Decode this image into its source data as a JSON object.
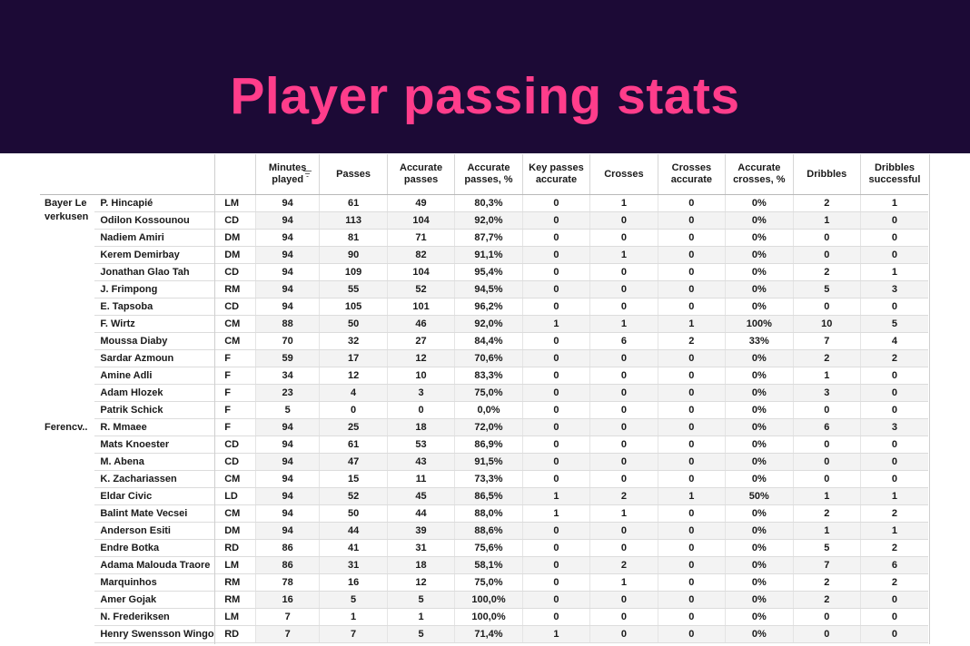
{
  "banner": {
    "title": "Player passing stats"
  },
  "colors": {
    "banner_bg": "#1c0a36",
    "title": "#ff3d8b"
  },
  "chart_data": {
    "type": "table",
    "title": "Player passing stats",
    "columns": [
      "Minutes played",
      "Passes",
      "Accurate passes",
      "Accurate passes, %",
      "Key passes accurate",
      "Crosses",
      "Crosses accurate",
      "Accurate crosses, %",
      "Dribbles",
      "Dribbles successful"
    ],
    "column_lines": [
      [
        "Minutes",
        "played"
      ],
      [
        "Passes"
      ],
      [
        "Accurate",
        "passes"
      ],
      [
        "Accurate",
        "passes, %"
      ],
      [
        "Key passes",
        "accurate"
      ],
      [
        "Crosses"
      ],
      [
        "Crosses",
        "accurate"
      ],
      [
        "Accurate",
        "crosses, %"
      ],
      [
        "Dribbles"
      ],
      [
        "Dribbles",
        "successful"
      ]
    ],
    "teams": [
      {
        "name_lines": [
          "Bayer Le",
          "verkusen"
        ],
        "players": [
          {
            "name": "P. Hincapié",
            "pos": "LM",
            "values": [
              "94",
              "61",
              "49",
              "80,3%",
              "0",
              "1",
              "0",
              "0%",
              "2",
              "1"
            ]
          },
          {
            "name": "Odilon Kossounou",
            "pos": "CD",
            "values": [
              "94",
              "113",
              "104",
              "92,0%",
              "0",
              "0",
              "0",
              "0%",
              "1",
              "0"
            ]
          },
          {
            "name": "Nadiem Amiri",
            "pos": "DM",
            "values": [
              "94",
              "81",
              "71",
              "87,7%",
              "0",
              "0",
              "0",
              "0%",
              "0",
              "0"
            ]
          },
          {
            "name": "Kerem Demirbay",
            "pos": "DM",
            "values": [
              "94",
              "90",
              "82",
              "91,1%",
              "0",
              "1",
              "0",
              "0%",
              "0",
              "0"
            ]
          },
          {
            "name": "Jonathan Glao Tah",
            "pos": "CD",
            "values": [
              "94",
              "109",
              "104",
              "95,4%",
              "0",
              "0",
              "0",
              "0%",
              "2",
              "1"
            ]
          },
          {
            "name": "J. Frimpong",
            "pos": "RM",
            "values": [
              "94",
              "55",
              "52",
              "94,5%",
              "0",
              "0",
              "0",
              "0%",
              "5",
              "3"
            ]
          },
          {
            "name": "E. Tapsoba",
            "pos": "CD",
            "values": [
              "94",
              "105",
              "101",
              "96,2%",
              "0",
              "0",
              "0",
              "0%",
              "0",
              "0"
            ]
          },
          {
            "name": "F. Wirtz",
            "pos": "CM",
            "values": [
              "88",
              "50",
              "46",
              "92,0%",
              "1",
              "1",
              "1",
              "100%",
              "10",
              "5"
            ]
          },
          {
            "name": "Moussa Diaby",
            "pos": "CM",
            "values": [
              "70",
              "32",
              "27",
              "84,4%",
              "0",
              "6",
              "2",
              "33%",
              "7",
              "4"
            ]
          },
          {
            "name": "Sardar Azmoun",
            "pos": "F",
            "values": [
              "59",
              "17",
              "12",
              "70,6%",
              "0",
              "0",
              "0",
              "0%",
              "2",
              "2"
            ]
          },
          {
            "name": "Amine Adli",
            "pos": "F",
            "values": [
              "34",
              "12",
              "10",
              "83,3%",
              "0",
              "0",
              "0",
              "0%",
              "1",
              "0"
            ]
          },
          {
            "name": "Adam Hlozek",
            "pos": "F",
            "values": [
              "23",
              "4",
              "3",
              "75,0%",
              "0",
              "0",
              "0",
              "0%",
              "3",
              "0"
            ]
          },
          {
            "name": "Patrik Schick",
            "pos": "F",
            "values": [
              "5",
              "0",
              "0",
              "0,0%",
              "0",
              "0",
              "0",
              "0%",
              "0",
              "0"
            ]
          }
        ]
      },
      {
        "name_lines": [
          "Ferencv.."
        ],
        "players": [
          {
            "name": "R. Mmaee",
            "pos": "F",
            "values": [
              "94",
              "25",
              "18",
              "72,0%",
              "0",
              "0",
              "0",
              "0%",
              "6",
              "3"
            ]
          },
          {
            "name": "Mats Knoester",
            "pos": "CD",
            "values": [
              "94",
              "61",
              "53",
              "86,9%",
              "0",
              "0",
              "0",
              "0%",
              "0",
              "0"
            ]
          },
          {
            "name": "M. Abena",
            "pos": "CD",
            "values": [
              "94",
              "47",
              "43",
              "91,5%",
              "0",
              "0",
              "0",
              "0%",
              "0",
              "0"
            ]
          },
          {
            "name": "K. Zachariassen",
            "pos": "CM",
            "values": [
              "94",
              "15",
              "11",
              "73,3%",
              "0",
              "0",
              "0",
              "0%",
              "0",
              "0"
            ]
          },
          {
            "name": "Eldar Civic",
            "pos": "LD",
            "values": [
              "94",
              "52",
              "45",
              "86,5%",
              "1",
              "2",
              "1",
              "50%",
              "1",
              "1"
            ]
          },
          {
            "name": "Balint Mate Vecsei",
            "pos": "CM",
            "values": [
              "94",
              "50",
              "44",
              "88,0%",
              "1",
              "1",
              "0",
              "0%",
              "2",
              "2"
            ]
          },
          {
            "name": "Anderson Esiti",
            "pos": "DM",
            "values": [
              "94",
              "44",
              "39",
              "88,6%",
              "0",
              "0",
              "0",
              "0%",
              "1",
              "1"
            ]
          },
          {
            "name": "Endre Botka",
            "pos": "RD",
            "values": [
              "86",
              "41",
              "31",
              "75,6%",
              "0",
              "0",
              "0",
              "0%",
              "5",
              "2"
            ]
          },
          {
            "name": "Adama Malouda Traore",
            "pos": "LM",
            "values": [
              "86",
              "31",
              "18",
              "58,1%",
              "0",
              "2",
              "0",
              "0%",
              "7",
              "6"
            ]
          },
          {
            "name": "Marquinhos",
            "pos": "RM",
            "values": [
              "78",
              "16",
              "12",
              "75,0%",
              "0",
              "1",
              "0",
              "0%",
              "2",
              "2"
            ]
          },
          {
            "name": "Amer Gojak",
            "pos": "RM",
            "values": [
              "16",
              "5",
              "5",
              "100,0%",
              "0",
              "0",
              "0",
              "0%",
              "2",
              "0"
            ]
          },
          {
            "name": "N. Frederiksen",
            "pos": "LM",
            "values": [
              "7",
              "1",
              "1",
              "100,0%",
              "0",
              "0",
              "0",
              "0%",
              "0",
              "0"
            ]
          },
          {
            "name": "Henry Swensson Wingo",
            "pos": "RD",
            "values": [
              "7",
              "7",
              "5",
              "71,4%",
              "1",
              "0",
              "0",
              "0%",
              "0",
              "0"
            ]
          }
        ]
      }
    ]
  }
}
